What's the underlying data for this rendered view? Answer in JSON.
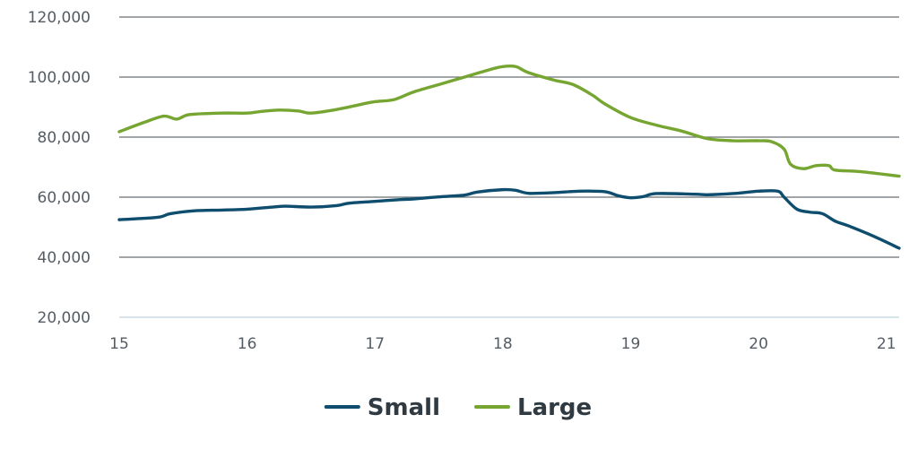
{
  "chart_data": {
    "type": "line",
    "title": "",
    "xlabel": "",
    "ylabel": "",
    "xlim": [
      15,
      21.1
    ],
    "ylim": [
      20000,
      120000
    ],
    "x_ticks": [
      15,
      16,
      17,
      18,
      19,
      20,
      21
    ],
    "x_tick_labels": [
      "15",
      "16",
      "17",
      "18",
      "19",
      "20",
      "21"
    ],
    "y_ticks": [
      20000,
      40000,
      60000,
      80000,
      100000,
      120000
    ],
    "y_tick_labels": [
      "20,000",
      "40,000",
      "60,000",
      "80,000",
      "100,000",
      "120,000"
    ],
    "grid": "horizontal",
    "legend_position": "bottom-center",
    "series": [
      {
        "name": "Small",
        "color": "#0e4d6e",
        "points": [
          [
            15.0,
            52500
          ],
          [
            15.3,
            53300
          ],
          [
            15.4,
            54500
          ],
          [
            15.6,
            55500
          ],
          [
            15.8,
            55700
          ],
          [
            16.0,
            56000
          ],
          [
            16.2,
            56700
          ],
          [
            16.3,
            57000
          ],
          [
            16.5,
            56700
          ],
          [
            16.7,
            57200
          ],
          [
            16.8,
            58000
          ],
          [
            17.0,
            58600
          ],
          [
            17.2,
            59200
          ],
          [
            17.3,
            59400
          ],
          [
            17.5,
            60100
          ],
          [
            17.7,
            60700
          ],
          [
            17.8,
            61700
          ],
          [
            18.0,
            62500
          ],
          [
            18.1,
            62300
          ],
          [
            18.2,
            61300
          ],
          [
            18.4,
            61500
          ],
          [
            18.6,
            62000
          ],
          [
            18.8,
            61800
          ],
          [
            18.9,
            60500
          ],
          [
            19.0,
            59800
          ],
          [
            19.1,
            60200
          ],
          [
            19.2,
            61200
          ],
          [
            19.5,
            61000
          ],
          [
            19.6,
            60800
          ],
          [
            19.8,
            61200
          ],
          [
            20.0,
            62000
          ],
          [
            20.15,
            62000
          ],
          [
            20.2,
            60000
          ],
          [
            20.3,
            56000
          ],
          [
            20.4,
            55000
          ],
          [
            20.5,
            54500
          ],
          [
            20.6,
            52000
          ],
          [
            20.7,
            50500
          ],
          [
            20.9,
            47000
          ],
          [
            21.1,
            43000
          ]
        ]
      },
      {
        "name": "Large",
        "color": "#76a531",
        "points": [
          [
            15.0,
            81800
          ],
          [
            15.2,
            85000
          ],
          [
            15.35,
            87000
          ],
          [
            15.45,
            86000
          ],
          [
            15.55,
            87500
          ],
          [
            15.8,
            88000
          ],
          [
            16.0,
            88000
          ],
          [
            16.1,
            88500
          ],
          [
            16.25,
            89000
          ],
          [
            16.4,
            88700
          ],
          [
            16.5,
            88000
          ],
          [
            16.7,
            89200
          ],
          [
            16.9,
            91000
          ],
          [
            17.0,
            91800
          ],
          [
            17.15,
            92500
          ],
          [
            17.3,
            95000
          ],
          [
            17.5,
            97500
          ],
          [
            17.7,
            100000
          ],
          [
            17.9,
            102500
          ],
          [
            18.0,
            103500
          ],
          [
            18.1,
            103500
          ],
          [
            18.2,
            101500
          ],
          [
            18.4,
            99000
          ],
          [
            18.55,
            97500
          ],
          [
            18.7,
            94000
          ],
          [
            18.8,
            91000
          ],
          [
            19.0,
            86500
          ],
          [
            19.2,
            84000
          ],
          [
            19.4,
            82000
          ],
          [
            19.6,
            79500
          ],
          [
            19.8,
            78800
          ],
          [
            20.0,
            78800
          ],
          [
            20.1,
            78500
          ],
          [
            20.2,
            76000
          ],
          [
            20.25,
            71000
          ],
          [
            20.35,
            69500
          ],
          [
            20.45,
            70500
          ],
          [
            20.55,
            70500
          ],
          [
            20.6,
            69000
          ],
          [
            20.8,
            68500
          ],
          [
            21.1,
            67000
          ]
        ]
      }
    ]
  }
}
